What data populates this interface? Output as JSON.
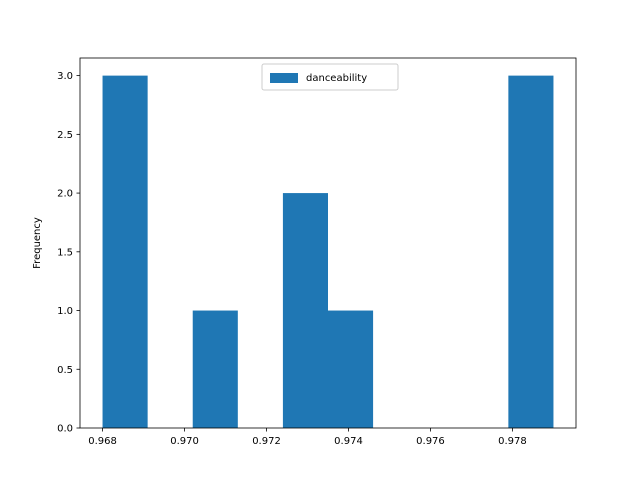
{
  "chart_data": {
    "type": "bar",
    "title": "",
    "xlabel": "",
    "ylabel": "Frequency",
    "xlim": [
      0.96745,
      0.97955
    ],
    "ylim": [
      0,
      3.15
    ],
    "xticks": [
      0.968,
      0.97,
      0.972,
      0.974,
      0.976,
      0.978
    ],
    "xtick_labels": [
      "0.968",
      "0.970",
      "0.972",
      "0.974",
      "0.976",
      "0.978"
    ],
    "yticks": [
      0.0,
      0.5,
      1.0,
      1.5,
      2.0,
      2.5,
      3.0
    ],
    "ytick_labels": [
      "0.0",
      "0.5",
      "1.0",
      "1.5",
      "2.0",
      "2.5",
      "3.0"
    ],
    "grid": false,
    "legend_position": "top-center",
    "series": [
      {
        "name": "danceability",
        "color": "#1f77b4",
        "bin_edges": [
          0.968,
          0.9691,
          0.9702,
          0.9713,
          0.9724,
          0.9735,
          0.9746,
          0.9757,
          0.9768,
          0.9779,
          0.979
        ],
        "counts": [
          3,
          0,
          1,
          0,
          2,
          1,
          0,
          0,
          0,
          3
        ]
      }
    ]
  }
}
